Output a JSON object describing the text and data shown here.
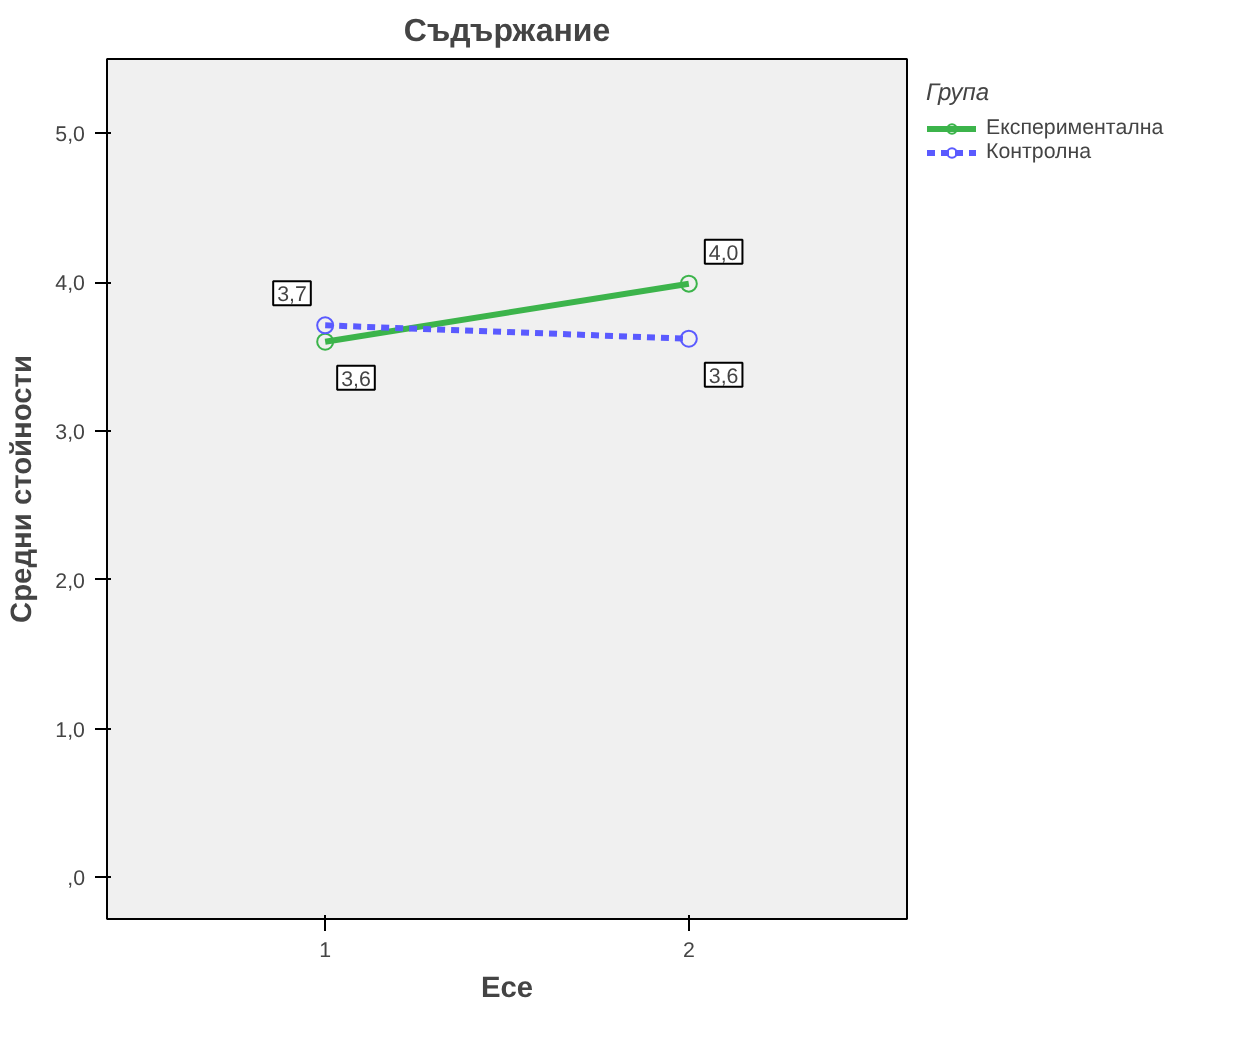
{
  "chart_data": {
    "type": "line",
    "title": "Съдържание",
    "xlabel": "Есе",
    "ylabel": "Средни стойности",
    "legend_title": "Група",
    "legend": "right",
    "marker": "circle",
    "grid": false,
    "x": [
      1,
      2
    ],
    "xlim": [
      0.4,
      2.6
    ],
    "xticks": [
      1,
      2
    ],
    "ylim": [
      -0.28,
      5.5
    ],
    "yticks": [
      {
        "value": 0,
        "label": ",0"
      },
      {
        "value": 1,
        "label": "1,0"
      },
      {
        "value": 2,
        "label": "2,0"
      },
      {
        "value": 3,
        "label": "3,0"
      },
      {
        "value": 4,
        "label": "4,0"
      },
      {
        "value": 5,
        "label": "5,0"
      }
    ],
    "series": [
      {
        "name": "Експериментална",
        "color": "#3cb44b",
        "line_style": "solid",
        "values": [
          3.6,
          3.99
        ],
        "value_labels": [
          "3,6",
          "4,0"
        ]
      },
      {
        "name": "Контролна",
        "color": "#5a5aff",
        "line_style": "dashed",
        "values": [
          3.71,
          3.62
        ],
        "value_labels": [
          "3,7",
          "3,6"
        ]
      }
    ]
  }
}
